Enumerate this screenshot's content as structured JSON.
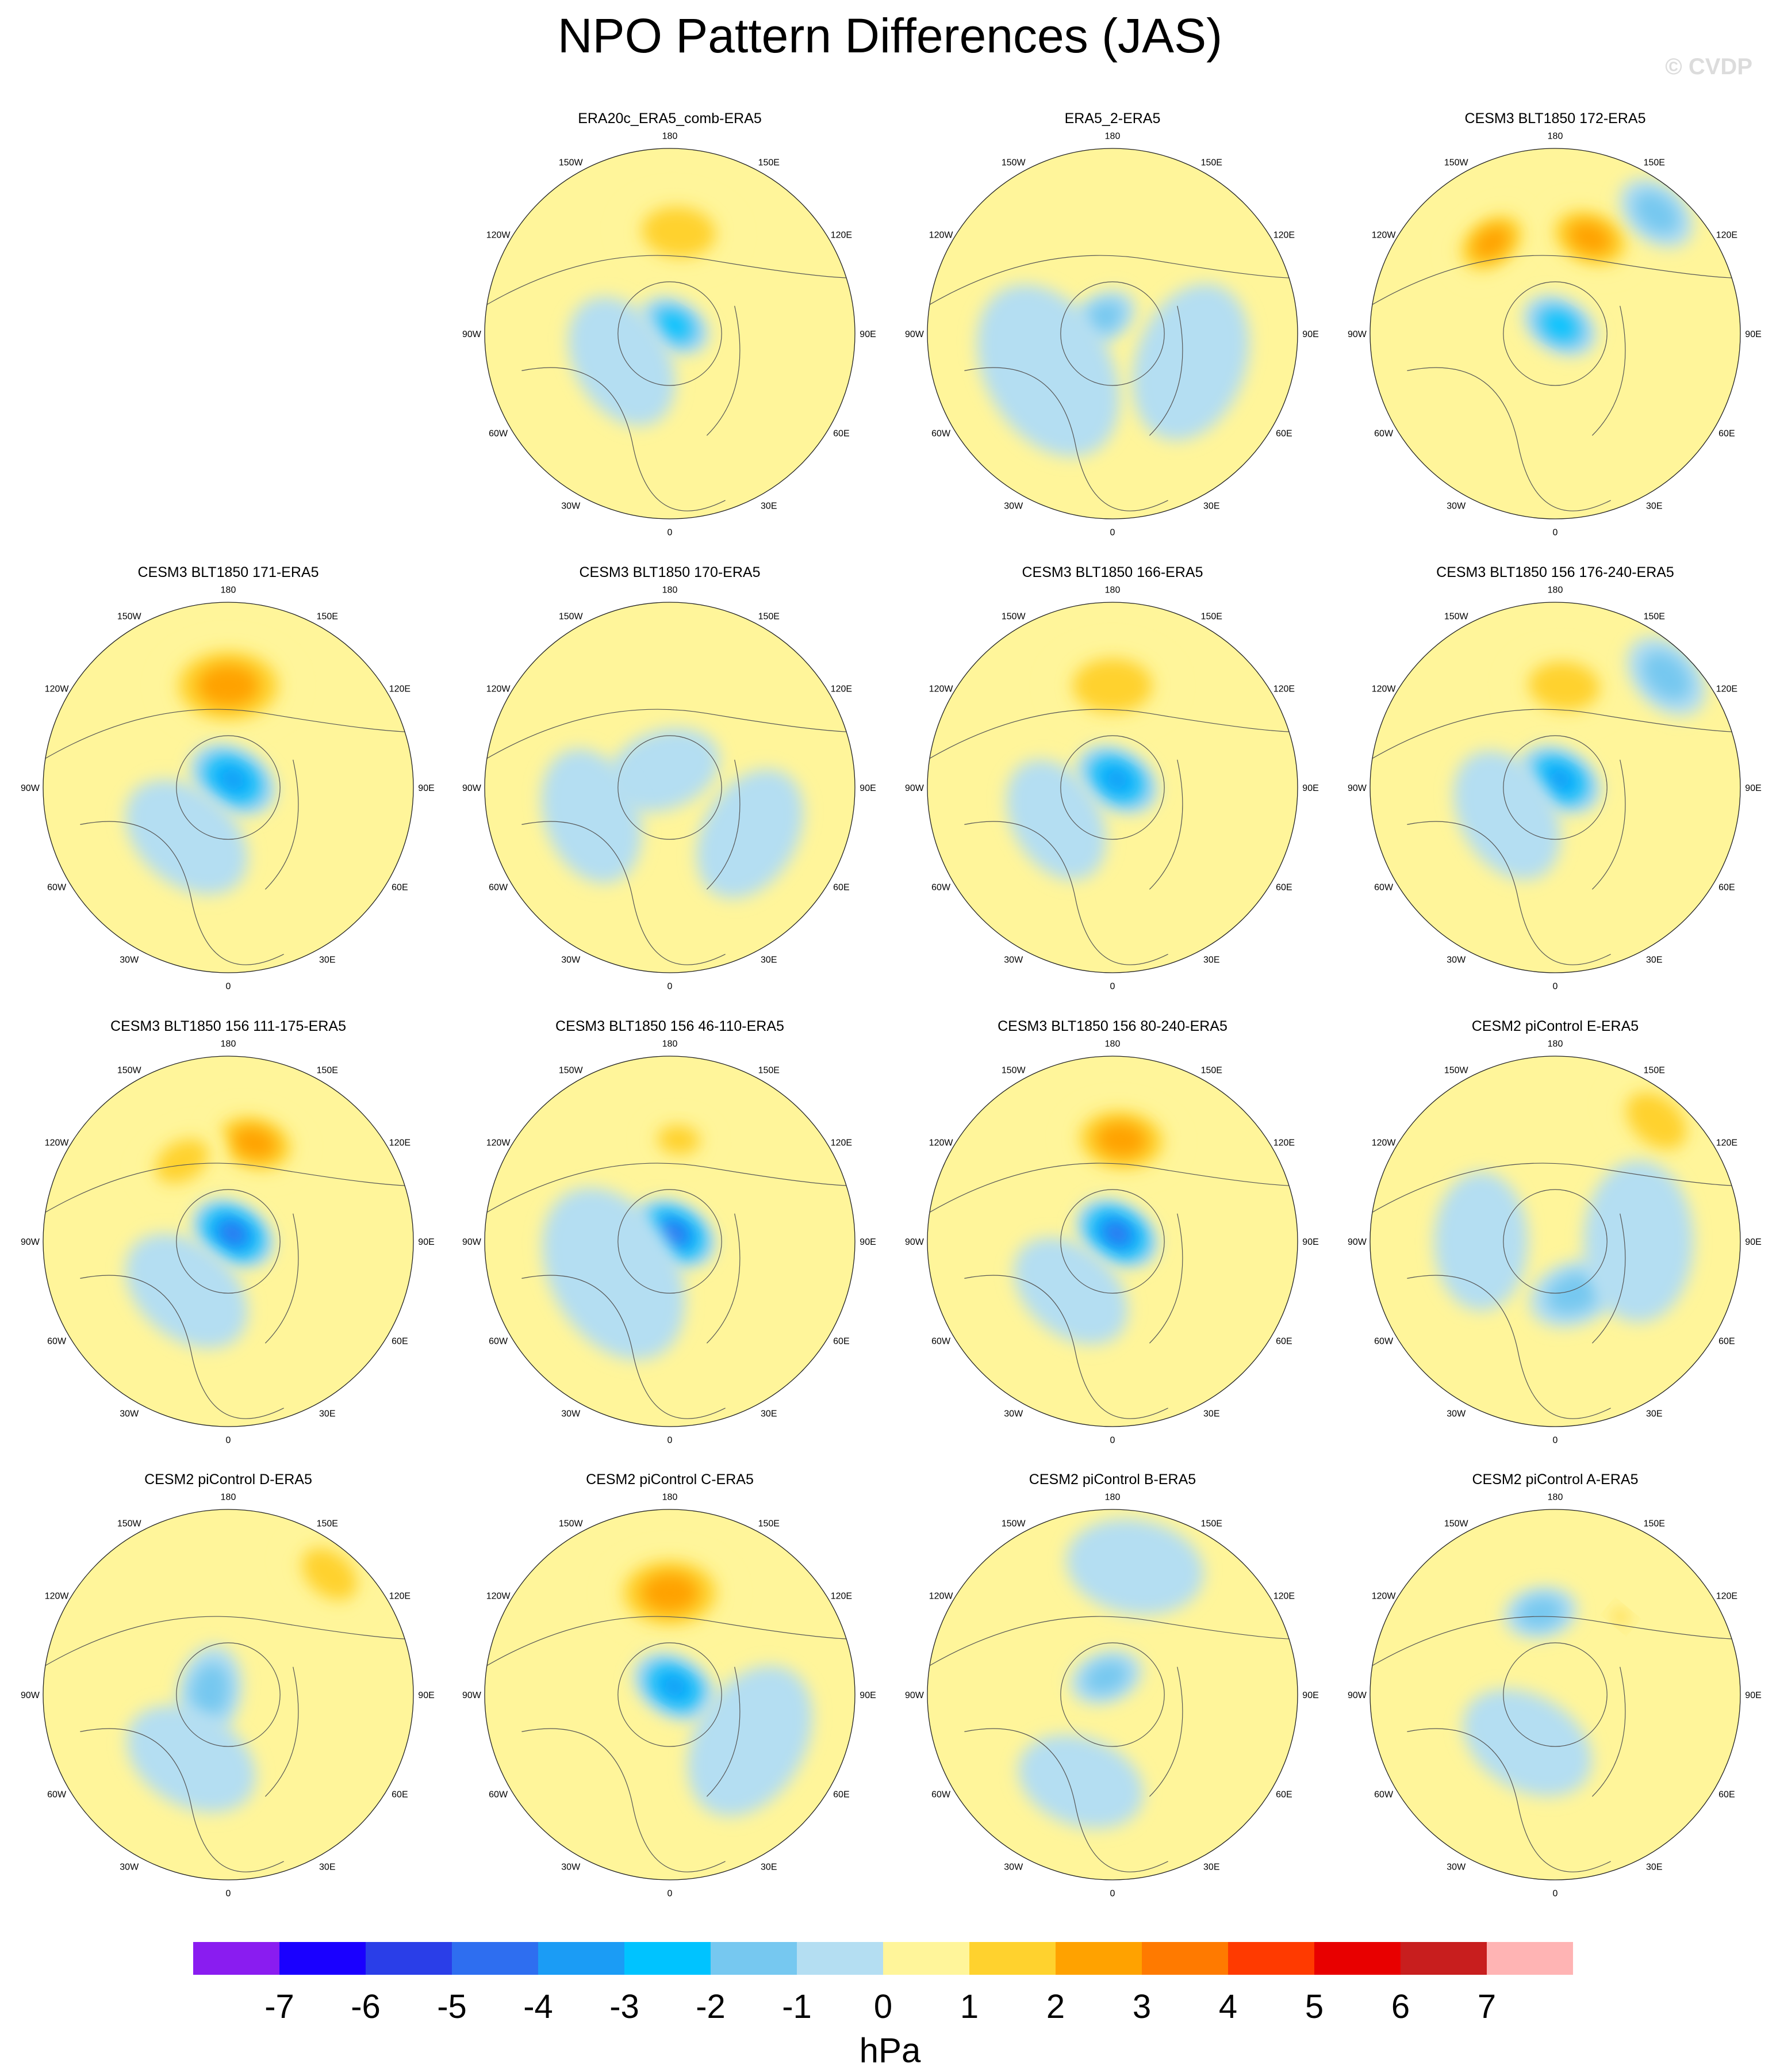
{
  "chart_data": {
    "type": "polar-map-panels",
    "title": "NPO Pattern Differences (JAS)",
    "watermark": "© CVDP",
    "projection": "north-polar-stereographic",
    "longitude_labels": [
      "180",
      "150E",
      "120E",
      "90E",
      "60E",
      "30E",
      "0",
      "30W",
      "60W",
      "90W",
      "120W",
      "150W"
    ],
    "panels": [
      {
        "title": "ERA20c_ERA5_comb-ERA5",
        "anomalies": [
          {
            "lon": 175,
            "r": 0.55,
            "value": 1.5,
            "size": 0.26
          },
          {
            "lon": 150,
            "r": 0.05,
            "value": -2.5,
            "size": 0.16
          },
          {
            "lon": 300,
            "r": 0.3,
            "value": -1,
            "size": 0.3
          }
        ]
      },
      {
        "title": "ERA5_2-ERA5",
        "anomalies": [
          {
            "lon": 210,
            "r": 0.1,
            "value": -1.5,
            "size": 0.15
          },
          {
            "lon": 300,
            "r": 0.4,
            "value": -1,
            "size": 0.4
          },
          {
            "lon": 70,
            "r": 0.45,
            "value": -1,
            "size": 0.35
          }
        ]
      },
      {
        "title": "CESM3 BLT1850 172-ERA5",
        "anomalies": [
          {
            "lon": 160,
            "r": 0.55,
            "value": 2.5,
            "size": 0.22
          },
          {
            "lon": 215,
            "r": 0.6,
            "value": 2.5,
            "size": 0.2
          },
          {
            "lon": 150,
            "r": 0.05,
            "value": -3,
            "size": 0.17
          },
          {
            "lon": 140,
            "r": 0.85,
            "value": -2,
            "size": 0.18
          }
        ]
      },
      {
        "title": "CESM3 BLT1850 171-ERA5",
        "anomalies": [
          {
            "lon": 180,
            "r": 0.55,
            "value": 3,
            "size": 0.3
          },
          {
            "lon": 150,
            "r": 0.05,
            "value": -4,
            "size": 0.2
          },
          {
            "lon": 320,
            "r": 0.35,
            "value": -1,
            "size": 0.3
          }
        ]
      },
      {
        "title": "CESM3 BLT1850 170-ERA5",
        "anomalies": [
          {
            "lon": 200,
            "r": 0.1,
            "value": -1,
            "size": 0.25
          },
          {
            "lon": 290,
            "r": 0.45,
            "value": -1,
            "size": 0.3
          },
          {
            "lon": 60,
            "r": 0.5,
            "value": -1,
            "size": 0.3
          }
        ]
      },
      {
        "title": "CESM3 BLT1850 166-ERA5",
        "anomalies": [
          {
            "lon": 180,
            "r": 0.55,
            "value": 2,
            "size": 0.28
          },
          {
            "lon": 150,
            "r": 0.05,
            "value": -4,
            "size": 0.19
          },
          {
            "lon": 300,
            "r": 0.35,
            "value": -1,
            "size": 0.28
          }
        ]
      },
      {
        "title": "CESM3 BLT1850 156 176-240-ERA5",
        "anomalies": [
          {
            "lon": 175,
            "r": 0.55,
            "value": 1.5,
            "size": 0.25
          },
          {
            "lon": 150,
            "r": 0.05,
            "value": -4,
            "size": 0.19
          },
          {
            "lon": 135,
            "r": 0.85,
            "value": -2,
            "size": 0.2
          },
          {
            "lon": 300,
            "r": 0.3,
            "value": -1,
            "size": 0.3
          }
        ]
      },
      {
        "title": "CESM3 BLT1850 156 111-175-ERA5",
        "anomalies": [
          {
            "lon": 165,
            "r": 0.55,
            "value": 2.5,
            "size": 0.22
          },
          {
            "lon": 210,
            "r": 0.5,
            "value": 2,
            "size": 0.2
          },
          {
            "lon": 150,
            "r": 0.05,
            "value": -4.5,
            "size": 0.19
          },
          {
            "lon": 320,
            "r": 0.35,
            "value": -1,
            "size": 0.3
          }
        ]
      },
      {
        "title": "CESM3 BLT1850 156 46-110-ERA5",
        "anomalies": [
          {
            "lon": 150,
            "r": 0.05,
            "value": -4.5,
            "size": 0.19
          },
          {
            "lon": 175,
            "r": 0.55,
            "value": 1.5,
            "size": 0.15
          },
          {
            "lon": 300,
            "r": 0.35,
            "value": -1,
            "size": 0.4
          }
        ]
      },
      {
        "title": "CESM3 BLT1850 156 80-240-ERA5",
        "anomalies": [
          {
            "lon": 175,
            "r": 0.55,
            "value": 2.5,
            "size": 0.25
          },
          {
            "lon": 150,
            "r": 0.05,
            "value": -4.5,
            "size": 0.19
          },
          {
            "lon": 320,
            "r": 0.35,
            "value": -1,
            "size": 0.28
          }
        ]
      },
      {
        "title": "CESM2 piControl E-ERA5",
        "anomalies": [
          {
            "lon": 140,
            "r": 0.85,
            "value": 2,
            "size": 0.24
          },
          {
            "lon": 20,
            "r": 0.3,
            "value": -2,
            "size": 0.2
          },
          {
            "lon": 270,
            "r": 0.4,
            "value": -1,
            "size": 0.3
          },
          {
            "lon": 90,
            "r": 0.45,
            "value": -1,
            "size": 0.35
          }
        ]
      },
      {
        "title": "CESM2 piControl D-ERA5",
        "anomalies": [
          {
            "lon": 140,
            "r": 0.85,
            "value": 1.5,
            "size": 0.22
          },
          {
            "lon": 260,
            "r": 0.1,
            "value": -1.5,
            "size": 0.2
          },
          {
            "lon": 330,
            "r": 0.4,
            "value": -1,
            "size": 0.3
          }
        ]
      },
      {
        "title": "CESM2 piControl C-ERA5",
        "anomalies": [
          {
            "lon": 180,
            "r": 0.55,
            "value": 2.5,
            "size": 0.28
          },
          {
            "lon": 150,
            "r": 0.05,
            "value": -4,
            "size": 0.19
          },
          {
            "lon": 60,
            "r": 0.5,
            "value": -1,
            "size": 0.35
          }
        ]
      },
      {
        "title": "CESM2 piControl B-ERA5",
        "anomalies": [
          {
            "lon": 200,
            "r": 0.1,
            "value": -1.5,
            "size": 0.16
          },
          {
            "lon": 170,
            "r": 0.7,
            "value": -1,
            "size": 0.3
          },
          {
            "lon": 340,
            "r": 0.5,
            "value": -1,
            "size": 0.28
          }
        ]
      },
      {
        "title": "CESM2 piControl A-ERA5",
        "anomalies": [
          {
            "lon": 190,
            "r": 0.45,
            "value": -1.5,
            "size": 0.16
          },
          {
            "lon": 140,
            "r": 0.55,
            "value": 1.5,
            "size": 0.06
          },
          {
            "lon": 330,
            "r": 0.3,
            "value": -1,
            "size": 0.3
          }
        ]
      }
    ],
    "colorbar": {
      "unit": "hPa",
      "ticks": [
        "-7",
        "-6",
        "-5",
        "-4",
        "-3",
        "-2",
        "-1",
        "0",
        "1",
        "2",
        "3",
        "4",
        "5",
        "6",
        "7"
      ],
      "colors": [
        "#8a1cf0",
        "#1a00ff",
        "#2a3ee8",
        "#2e6ef0",
        "#1b9cf5",
        "#00c3ff",
        "#76c8f0",
        "#b4def2",
        "#fff59a",
        "#ffd22e",
        "#ffa200",
        "#ff7a00",
        "#ff3a00",
        "#e80000",
        "#c81e1e",
        "#ffb4b4"
      ]
    }
  }
}
